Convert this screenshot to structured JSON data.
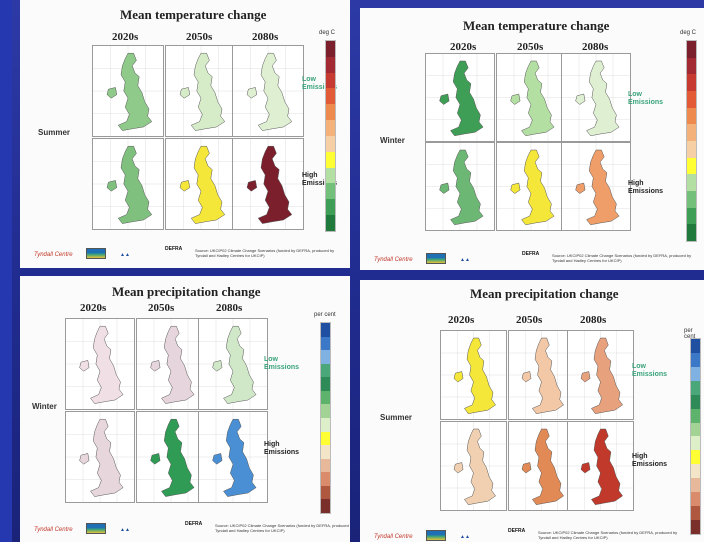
{
  "panels": [
    {
      "id": "temp-summer",
      "title": "Mean temperature change",
      "season": "Summer",
      "decades": [
        "2020s",
        "2050s",
        "2080s"
      ],
      "low_label": [
        "Low",
        "Emissions"
      ],
      "high_label": [
        "High",
        "Emissions"
      ],
      "unit": "deg C",
      "scale_colors": [
        "#7a1f2b",
        "#a32a33",
        "#c73a32",
        "#e35a36",
        "#ef8a4e",
        "#f4b27a",
        "#f7cfa4",
        "#ffff33",
        "#b3dfa2",
        "#73c07a",
        "#3f9e55",
        "#1f7a3c"
      ],
      "map_colors": [
        [
          "#8fca8a",
          "#d6ecc9",
          "#dff0d2"
        ],
        [
          "#7fc07f",
          "#f5e63a",
          "#7a1f2b"
        ]
      ],
      "footer": "Source: UKCIP02 Climate Change Scenarios (funded by DEFRA, produced by Tyndall and Hadley Centres for UKCIP)"
    },
    {
      "id": "temp-winter",
      "title": "Mean temperature change",
      "season": "Winter",
      "decades": [
        "2020s",
        "2050s",
        "2080s"
      ],
      "low_label": [
        "Low",
        "Emissions"
      ],
      "high_label": [
        "High",
        "Emissions"
      ],
      "unit": "deg C",
      "scale_colors": [
        "#7a1f2b",
        "#a32a33",
        "#c73a32",
        "#e35a36",
        "#ef8a4e",
        "#f4b27a",
        "#f7cfa4",
        "#ffff33",
        "#b3dfa2",
        "#73c07a",
        "#3f9e55",
        "#1f7a3c"
      ],
      "map_colors": [
        [
          "#3f9e55",
          "#b3dfa2",
          "#dff0d2"
        ],
        [
          "#6db775",
          "#f5e63a",
          "#ef9e6a"
        ]
      ],
      "footer": "Source: UKCIP02 Climate Change Scenarios (funded by DEFRA, produced by Tyndall and Hadley Centres for UKCIP)"
    },
    {
      "id": "precip-winter",
      "title": "Mean precipitation change",
      "season": "Winter",
      "decades": [
        "2020s",
        "2050s",
        "2080s"
      ],
      "low_label": [
        "Low",
        "Emissions"
      ],
      "high_label": [
        "High",
        "Emissions"
      ],
      "unit": "per cent",
      "scale_colors": [
        "#1f4fa0",
        "#3b79c8",
        "#7fb1e3",
        "#4aa77a",
        "#2e8b57",
        "#5db36b",
        "#a3d394",
        "#dcefc8",
        "#ffff33",
        "#f3e5c8",
        "#e7b99a",
        "#d98b6b",
        "#b0573f",
        "#7a2f2a"
      ],
      "map_colors": [
        [
          "#f0e0e6",
          "#e6d5dc",
          "#d0e8c8"
        ],
        [
          "#e7d7dd",
          "#2f9b55",
          "#4a8fd4"
        ]
      ],
      "footer": "Source: UKCIP02 Climate Change Scenarios (funded by DEFRA, produced by Tyndall and Hadley Centres for UKCIP)"
    },
    {
      "id": "precip-summer",
      "title": "Mean precipitation change",
      "season": "Summer",
      "decades": [
        "2020s",
        "2050s",
        "2080s"
      ],
      "low_label": [
        "Low",
        "Emissions"
      ],
      "high_label": [
        "High",
        "Emissions"
      ],
      "unit": "per cent",
      "scale_colors": [
        "#1f4fa0",
        "#3b79c8",
        "#7fb1e3",
        "#4aa77a",
        "#2e8b57",
        "#5db36b",
        "#a3d394",
        "#dcefc8",
        "#ffff33",
        "#f3e5c8",
        "#e7b99a",
        "#d98b6b",
        "#b0573f",
        "#7a2f2a"
      ],
      "map_colors": [
        [
          "#f5e63a",
          "#f2c8a6",
          "#e7a17c"
        ],
        [
          "#f0d0b0",
          "#e28a55",
          "#c0392b"
        ]
      ],
      "footer": "Source: UKCIP02 Climate Change Scenarios (funded by DEFRA, produced by Tyndall and Hadley Centres for UKCIP)"
    }
  ],
  "logos": {
    "tyndall": "Tyndall Centre",
    "defra": "DEFRA"
  }
}
